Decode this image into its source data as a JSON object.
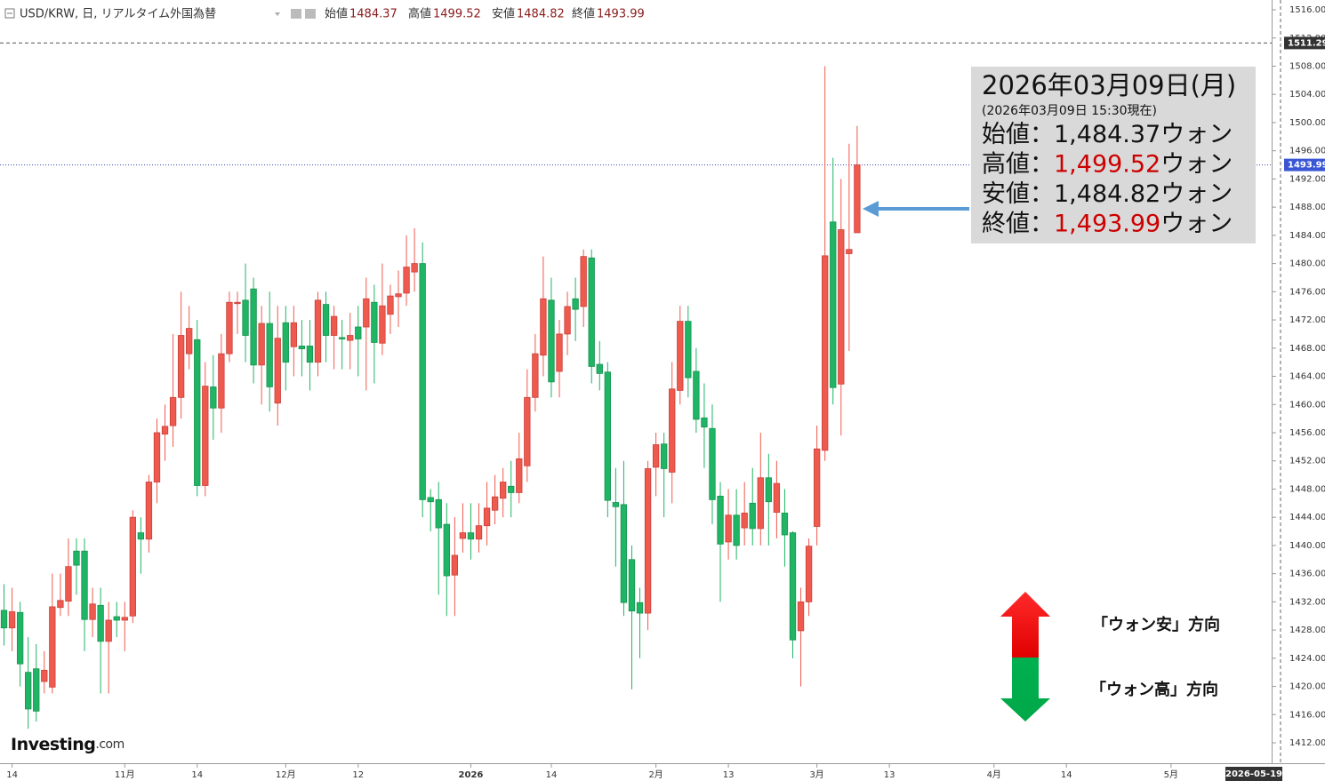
{
  "chart_data": {
    "type": "candlestick",
    "title": "USD/KRW, 日, リアルタイム外国為替",
    "ohlc_labels": {
      "open": "始値",
      "high": "高値",
      "low": "安値",
      "close": "終値"
    },
    "up_color": "#ef5a4f",
    "down_color": "#1fb565",
    "categories": [
      null,
      "14",
      null,
      null,
      null,
      null,
      null,
      null,
      null,
      null,
      null,
      null,
      null,
      null,
      null,
      "11月",
      null,
      null,
      null,
      null,
      null,
      null,
      null,
      null,
      "14",
      null,
      null,
      null,
      null,
      null,
      null,
      null,
      null,
      null,
      null,
      "12月",
      null,
      null,
      null,
      null,
      null,
      null,
      null,
      null,
      "12",
      null,
      null,
      null,
      null,
      null,
      null,
      null,
      null,
      null,
      null,
      null,
      null,
      null,
      "2026",
      null,
      null,
      null,
      null,
      null,
      null,
      null,
      null,
      null,
      "14",
      null,
      null,
      null,
      null,
      null,
      null,
      null,
      null,
      null,
      null,
      null,
      null,
      "2月",
      null,
      null,
      null,
      null,
      null,
      null,
      null,
      null,
      "13",
      null,
      null,
      null,
      null,
      null,
      null,
      null,
      null,
      null,
      null,
      "3月",
      null,
      null,
      null,
      null,
      null,
      null,
      null,
      null,
      "13",
      null,
      null,
      null,
      null,
      null,
      null,
      null,
      null,
      null,
      null,
      null,
      null,
      "4月",
      null,
      null,
      null,
      null,
      null,
      null,
      null,
      null,
      "14",
      null,
      null,
      null,
      null,
      null,
      null,
      null,
      null,
      null,
      null,
      null,
      null,
      "5月",
      null,
      null,
      null,
      null,
      null,
      null,
      null,
      null,
      null,
      null,
      null,
      null
    ],
    "open": [
      1430.8,
      1428.3,
      1430.5,
      1422,
      1422.5,
      1420.7,
      1419.9,
      1431.2,
      1432.1,
      1439.2,
      1439.2,
      1429.5,
      1431.5,
      1426.4,
      1429.9,
      1429.4,
      1430,
      1441.8,
      1440.9,
      1449,
      1455.8,
      1457,
      1461,
      1467.2,
      1469.2,
      1448.5,
      1462.5,
      1459.5,
      1467.2,
      1474.4,
      1474.8,
      1476.4,
      1465.6,
      1471.5,
      1460.2,
      1471.6,
      1468.2,
      1468.3,
      1468.3,
      1466,
      1474.2,
      1469.8,
      1469.5,
      1469.1,
      1471,
      1471,
      1474.5,
      1468.7,
      1472.8,
      1475.3,
      1475.8,
      1478.8,
      1480,
      1446.8,
      1446.5,
      1443,
      1435.8,
      1441,
      1441.8,
      1440.9,
      1442.8,
      1445,
      1446.7,
      1448.4,
      1447.5,
      1451.3,
      1461,
      1467,
      1474.8,
      1464.7,
      1470,
      1475,
      1473.9,
      1480.8,
      1465.7,
      1464.6,
      1446.1,
      1445.8,
      1438,
      1431.9,
      1430.4,
      1451.1,
      1454.4,
      1450.4,
      1462,
      1471.8,
      1464.7,
      1458.1,
      1456.6,
      1447,
      1440.5,
      1444.3,
      1442.5,
      1446,
      1442.4,
      1449.6,
      1444.7,
      1444.6,
      1441.8,
      1427.9,
      1432,
      1442.7,
      1453.5,
      1485.9,
      1462.9,
      1481.4,
      1484.37,
      null,
      null,
      null,
      null,
      null,
      null,
      null,
      null,
      null,
      null,
      null,
      null,
      null,
      null,
      null,
      null,
      null,
      null,
      null,
      null,
      null,
      null,
      null,
      null,
      null,
      null,
      null,
      null,
      null,
      null,
      null,
      null,
      null,
      null,
      null,
      null,
      null,
      null,
      null,
      null,
      null,
      null,
      null,
      null,
      null,
      null,
      null,
      null,
      null,
      null,
      null
    ],
    "high": [
      1434.5,
      1434,
      1432,
      1427,
      1426,
      1425,
      1436,
      1436,
      1441,
      1441,
      1441,
      1434,
      1434,
      1432,
      1432,
      1432,
      1445,
      1444,
      1450,
      1458,
      1460,
      1470,
      1476,
      1474,
      1472,
      1466,
      1467,
      1470,
      1476,
      1476,
      1480,
      1478,
      1474,
      1476,
      1474,
      1474,
      1474,
      1472,
      1472,
      1476,
      1476,
      1474,
      1472,
      1473,
      1474,
      1478,
      1477,
      1480,
      1477,
      1479,
      1484,
      1485,
      1483,
      1448,
      1449,
      1446,
      1444,
      1446,
      1446,
      1446,
      1449,
      1450,
      1451,
      1452,
      1456,
      1465,
      1470,
      1481,
      1478,
      1472,
      1476,
      1478,
      1482,
      1482,
      1469,
      1466,
      1451,
      1452,
      1440,
      1434,
      1452,
      1456,
      1456,
      1466,
      1474,
      1474,
      1468,
      1463,
      1460,
      1449,
      1448,
      1448,
      1449,
      1451,
      1456,
      1453,
      1452,
      1448,
      1442,
      1434,
      1441,
      1457,
      1508,
      1495,
      1492,
      1497,
      1499.52,
      null,
      null,
      null,
      null,
      null,
      null,
      null,
      null,
      null,
      null,
      null,
      null,
      null,
      null,
      null,
      null,
      null,
      null,
      null,
      null,
      null,
      null,
      null,
      null,
      null,
      null,
      null,
      null,
      null,
      null,
      null,
      null,
      null,
      null,
      null,
      null,
      null,
      null,
      null,
      null,
      null,
      null,
      null,
      null,
      null,
      null,
      null,
      null,
      null,
      null,
      null
    ],
    "low": [
      1425.8,
      1425,
      1420,
      1414,
      1415,
      1419,
      1419,
      1430,
      1430,
      1433,
      1425,
      1427,
      1419,
      1419,
      1427,
      1425,
      1429,
      1436,
      1439,
      1446,
      1452,
      1454,
      1458,
      1465,
      1447,
      1447,
      1455,
      1456,
      1466,
      1470,
      1466,
      1463,
      1460,
      1459,
      1457,
      1462,
      1464,
      1464,
      1462,
      1464,
      1466,
      1465,
      1465,
      1465,
      1464,
      1462,
      1463,
      1467,
      1470,
      1471,
      1474,
      1476,
      1444,
      1442,
      1433,
      1430,
      1430,
      1439,
      1438,
      1439,
      1440,
      1443,
      1444,
      1444,
      1446,
      1449,
      1459,
      1464,
      1461,
      1461,
      1467,
      1469,
      1471,
      1463,
      1462,
      1444,
      1437,
      1430,
      1419.6,
      1424,
      1428,
      1447,
      1444,
      1446,
      1460,
      1461,
      1456,
      1451,
      1443,
      1432,
      1438,
      1438,
      1440,
      1440,
      1440,
      1440,
      1441,
      1437,
      1424,
      1420,
      1430,
      1440,
      1452,
      1460,
      1455.6,
      1467.6,
      1484.82,
      null,
      null,
      null,
      null,
      null,
      null,
      null,
      null,
      null,
      null,
      null,
      null,
      null,
      null,
      null,
      null,
      null,
      null,
      null,
      null,
      null,
      null,
      null,
      null,
      null,
      null,
      null,
      null,
      null,
      null,
      null,
      null,
      null,
      null,
      null,
      null,
      null,
      null,
      null,
      null,
      null,
      null,
      null,
      null,
      null,
      null,
      null,
      null,
      null,
      null,
      null
    ],
    "close": [
      1428.3,
      1430.6,
      1423.2,
      1416.8,
      1416.5,
      1422.3,
      1431.3,
      1432.2,
      1437,
      1437.2,
      1429.5,
      1431.7,
      1426.4,
      1429.4,
      1429.4,
      1429.8,
      1444,
      1440.9,
      1449,
      1456,
      1456.9,
      1461,
      1469.8,
      1470.8,
      1448.5,
      1462.6,
      1459.5,
      1467.2,
      1474.5,
      1474.5,
      1469.8,
      1465.6,
      1471.5,
      1462.5,
      1469.4,
      1466,
      1471.6,
      1467.9,
      1466,
      1474.8,
      1469.8,
      1472.5,
      1469.3,
      1469.8,
      1469.3,
      1475,
      1468.8,
      1474,
      1475.4,
      1475.7,
      1479.5,
      1480,
      1446.5,
      1446.2,
      1442.5,
      1435.7,
      1438.6,
      1441.8,
      1440.9,
      1442.8,
      1445.3,
      1446.9,
      1449,
      1447.5,
      1452.3,
      1461,
      1467.2,
      1475,
      1463.2,
      1470,
      1473.9,
      1473.5,
      1481,
      1465.4,
      1464.4,
      1446.4,
      1445.5,
      1431.9,
      1430.7,
      1430.4,
      1450.9,
      1454.3,
      1450.9,
      1462.2,
      1471.8,
      1463.8,
      1457.9,
      1456.8,
      1446.5,
      1440.2,
      1444.3,
      1440,
      1444.6,
      1442.4,
      1449.6,
      1446.2,
      1448.8,
      1441.5,
      1426.6,
      1432,
      1439.9,
      1453.7,
      1481.1,
      1462.4,
      1484.8,
      1482,
      1493.99,
      null,
      null,
      null,
      null,
      null,
      null,
      null,
      null,
      null,
      null,
      null,
      null,
      null,
      null,
      null,
      null,
      null,
      null,
      null,
      null,
      null,
      null,
      null,
      null,
      null,
      null,
      null,
      null,
      null,
      null,
      null,
      null,
      null,
      null,
      null,
      null,
      null,
      null,
      null,
      null,
      null,
      null,
      null,
      null,
      null,
      null,
      null,
      null,
      null,
      null,
      null
    ],
    "ylim": [
      1409.23,
      1517.39
    ],
    "yticks": [
      {
        "value": 1412,
        "label": "1412.00"
      },
      {
        "value": 1416,
        "label": "1416.00"
      },
      {
        "value": 1420,
        "label": "1420.00"
      },
      {
        "value": 1424,
        "label": "1424.00"
      },
      {
        "value": 1428,
        "label": "1428.00"
      },
      {
        "value": 1432,
        "label": "1432.00"
      },
      {
        "value": 1436,
        "label": "1436.00"
      },
      {
        "value": 1440,
        "label": "1440.00"
      },
      {
        "value": 1444,
        "label": "1444.00"
      },
      {
        "value": 1448,
        "label": "1448.00"
      },
      {
        "value": 1452,
        "label": "1452.00"
      },
      {
        "value": 1456,
        "label": "1456.00"
      },
      {
        "value": 1460,
        "label": "1460.00"
      },
      {
        "value": 1464,
        "label": "1464.00"
      },
      {
        "value": 1468,
        "label": "1468.00"
      },
      {
        "value": 1472,
        "label": "1472.00"
      },
      {
        "value": 1476,
        "label": "1476.00"
      },
      {
        "value": 1480,
        "label": "1480.00"
      },
      {
        "value": 1484,
        "label": "1484.00"
      },
      {
        "value": 1488,
        "label": "1488.00"
      },
      {
        "value": 1492,
        "label": "1492.00"
      },
      {
        "value": 1496,
        "label": "1496.00"
      },
      {
        "value": 1500,
        "label": "1500.00"
      },
      {
        "value": 1504,
        "label": "1504.00"
      },
      {
        "value": 1508,
        "label": "1508.00"
      },
      {
        "value": 1512,
        "label": "1512.00"
      },
      {
        "value": 1516,
        "label": "1516.00"
      }
    ],
    "price_lines": [
      {
        "value": 1511.29,
        "label": "1511.29",
        "color": "#555555",
        "box": "#333333",
        "dash": "4 3"
      },
      {
        "value": 1493.99,
        "label": "1493.99",
        "color": "#3a4fc4",
        "box": "#3a56d4",
        "dash": "1 2"
      }
    ],
    "x_marker": "2026-05-19",
    "logo": {
      "brand": "Investing",
      "suffix": ".com"
    },
    "annotation": {
      "title": "2026年03月09日(月)",
      "subtitle": "(2026年03月09日 15:30現在)",
      "rows": [
        {
          "name": "始値：",
          "value_label": "1,484.37",
          "unit": "ウォン",
          "color": "#111111"
        },
        {
          "name": "高値：",
          "value_label": "1,499.52",
          "unit": "ウォン",
          "color": "#cc0000"
        },
        {
          "name": "安値：",
          "value_label": "1,484.82",
          "unit": "ウォン",
          "color": "#111111"
        },
        {
          "name": "終値：",
          "value_label": "1,493.99",
          "unit": "ウォン",
          "color": "#cc0000"
        }
      ]
    },
    "direction_labels": {
      "up": "「ウォン安」方向",
      "down": "「ウォン高」方向"
    }
  }
}
